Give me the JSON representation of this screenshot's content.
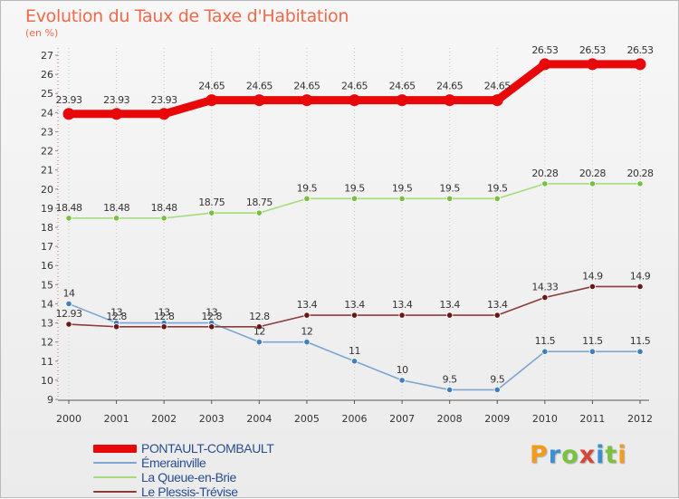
{
  "title": "Evolution du Taux de Taxe d'Habitation",
  "ylabel": "(en %)",
  "logo": {
    "text": "Proxiti",
    "letter_colors": [
      "#f29b1d",
      "#3b8fd4",
      "#7ac142",
      "#d4453a",
      "#3b8fd4",
      "#7ac142",
      "#f29b1d"
    ]
  },
  "chart_data": {
    "type": "line",
    "title": "Evolution du Taux de Taxe d'Habitation",
    "ylabel": "(en %)",
    "xlabel": "",
    "x": [
      "2000",
      "2001",
      "2002",
      "2003",
      "2004",
      "2005",
      "2006",
      "2007",
      "2008",
      "2009",
      "2010",
      "2011",
      "2012"
    ],
    "ylim": [
      9,
      27
    ],
    "yticks": [
      "9",
      "10",
      "11",
      "12",
      "13",
      "14",
      "15",
      "16",
      "17",
      "18",
      "19",
      "20",
      "21",
      "22",
      "23",
      "24",
      "25",
      "26",
      "27"
    ],
    "grid": "vertical dotted",
    "legend_position": "bottom-left",
    "series": [
      {
        "name": "PONTAULT-COMBAULT",
        "color": "#e8080a",
        "marker_color": "#e8080a",
        "emphasis": "thick",
        "values": [
          23.93,
          23.93,
          23.93,
          24.65,
          24.65,
          24.65,
          24.65,
          24.65,
          24.65,
          24.65,
          26.53,
          26.53,
          26.53
        ],
        "labels": [
          "23.93",
          "23.93",
          "23.93",
          "24.65",
          "24.65",
          "24.65",
          "24.65",
          "24.65",
          "24.65",
          "24.65",
          "26.53",
          "26.53",
          "26.53"
        ]
      },
      {
        "name": "Émerainville",
        "color": "#7aa6cf",
        "marker_color": "#3d7fc0",
        "emphasis": "thin",
        "values": [
          14,
          13,
          13,
          13,
          12,
          12,
          11,
          10,
          9.5,
          9.5,
          11.5,
          11.5,
          11.5
        ],
        "labels": [
          "14",
          "13",
          "13",
          "13",
          "12",
          "12",
          "11",
          "10",
          "9.5",
          "9.5",
          "11.5",
          "11.5",
          "11.5"
        ]
      },
      {
        "name": "La Queue-en-Brie",
        "color": "#a3dc7a",
        "marker_color": "#77c13e",
        "emphasis": "thin",
        "values": [
          18.48,
          18.48,
          18.48,
          18.75,
          18.75,
          19.5,
          19.5,
          19.5,
          19.5,
          19.5,
          20.28,
          20.28,
          20.28
        ],
        "labels": [
          "18.48",
          "18.48",
          "18.48",
          "18.75",
          "18.75",
          "19.5",
          "19.5",
          "19.5",
          "19.5",
          "19.5",
          "20.28",
          "20.28",
          "20.28"
        ]
      },
      {
        "name": "Le Plessis-Trévise",
        "color": "#8c3a3a",
        "marker_color": "#6b1616",
        "emphasis": "thin",
        "values": [
          12.93,
          12.8,
          12.8,
          12.8,
          12.8,
          13.4,
          13.4,
          13.4,
          13.4,
          13.4,
          14.33,
          14.9,
          14.9
        ],
        "labels": [
          "12.93",
          "12.8",
          "12.8",
          "12.8",
          "12.8",
          "13.4",
          "13.4",
          "13.4",
          "13.4",
          "13.4",
          "14.33",
          "14.9",
          "14.9"
        ]
      }
    ]
  }
}
